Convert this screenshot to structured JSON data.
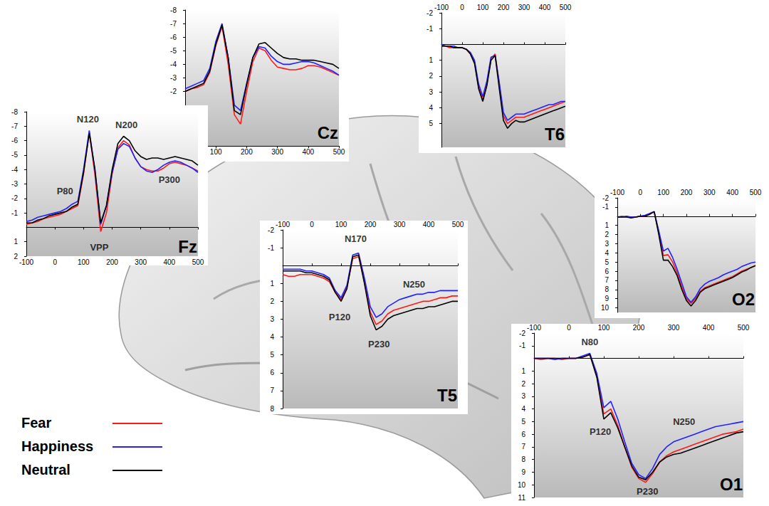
{
  "chart_data": [
    {
      "type": "line",
      "title": "Cz",
      "grid": false,
      "x": [
        0,
        20,
        40,
        60,
        80,
        100,
        120,
        140,
        160,
        180,
        200,
        220,
        240,
        260,
        280,
        300,
        320,
        340,
        360,
        380,
        400,
        420,
        440,
        460,
        480,
        500
      ],
      "xlim": [
        0,
        500
      ],
      "xticks": [
        100,
        200,
        300,
        400,
        500
      ],
      "ylim": [
        2,
        -8
      ],
      "yticks": [
        -8,
        -7,
        -6,
        -5,
        -4,
        -3,
        -2
      ],
      "series": [
        {
          "name": "Fear",
          "color": "#ff1a1a",
          "values": [
            -2.0,
            -2.2,
            -2.3,
            -2.5,
            -3.4,
            -5.4,
            -6.8,
            -4.0,
            -0.3,
            0.4,
            -2.0,
            -4.2,
            -5.2,
            -5.0,
            -4.3,
            -3.8,
            -3.7,
            -3.6,
            -3.6,
            -3.7,
            -3.9,
            -3.9,
            -3.8,
            -3.6,
            -3.4,
            -3.2
          ]
        },
        {
          "name": "Happiness",
          "color": "#2222ff",
          "values": [
            -2.2,
            -2.4,
            -2.6,
            -2.8,
            -3.7,
            -5.7,
            -7.0,
            -4.5,
            -1.0,
            -0.6,
            -2.6,
            -4.5,
            -5.3,
            -5.2,
            -4.6,
            -4.2,
            -4.0,
            -4.0,
            -4.1,
            -4.2,
            -4.2,
            -4.1,
            -3.9,
            -3.7,
            -3.5,
            -3.2
          ]
        },
        {
          "name": "Neutral",
          "color": "#000000",
          "values": [
            -2.0,
            -2.2,
            -2.4,
            -2.6,
            -3.5,
            -5.5,
            -6.9,
            -4.5,
            -0.6,
            -0.3,
            -2.5,
            -4.5,
            -5.5,
            -5.6,
            -5.2,
            -4.8,
            -4.5,
            -4.4,
            -4.4,
            -4.3,
            -4.3,
            -4.3,
            -4.2,
            -4.1,
            -4.0,
            -3.7
          ]
        }
      ],
      "annotations": []
    },
    {
      "type": "line",
      "title": "Fz",
      "grid": false,
      "legend": "lower left",
      "x": [
        -100,
        -80,
        -60,
        -40,
        -20,
        0,
        20,
        40,
        60,
        80,
        100,
        120,
        140,
        160,
        180,
        200,
        220,
        240,
        260,
        280,
        300,
        320,
        340,
        360,
        380,
        400,
        420,
        440,
        460,
        480,
        500
      ],
      "xlim": [
        -100,
        500
      ],
      "xticks": [
        -100,
        0,
        100,
        200,
        300,
        400,
        500
      ],
      "ylim": [
        2,
        -8
      ],
      "yticks": [
        -8,
        -7,
        -6,
        -5,
        -4,
        -3,
        -2,
        -1,
        1,
        2
      ],
      "series": [
        {
          "name": "Fear",
          "color": "#ff1a1a",
          "values": [
            -0.2,
            -0.3,
            -0.4,
            -0.6,
            -0.7,
            -0.8,
            -0.9,
            -1.1,
            -1.3,
            -1.5,
            -3.7,
            -6.6,
            -3.6,
            0.3,
            -1.0,
            -3.7,
            -5.5,
            -6.0,
            -5.7,
            -4.8,
            -4.2,
            -4.0,
            -3.9,
            -3.9,
            -4.1,
            -4.4,
            -4.5,
            -4.4,
            -4.3,
            -4.1,
            -3.9
          ]
        },
        {
          "name": "Happiness",
          "color": "#2222ff",
          "values": [
            -0.4,
            -0.5,
            -0.7,
            -0.8,
            -0.9,
            -1.0,
            -1.1,
            -1.3,
            -1.6,
            -1.8,
            -4.0,
            -6.7,
            -3.9,
            -0.2,
            -1.5,
            -3.8,
            -5.4,
            -5.8,
            -5.6,
            -4.8,
            -4.2,
            -3.9,
            -3.8,
            -4.0,
            -4.3,
            -4.5,
            -4.6,
            -4.5,
            -4.3,
            -4.1,
            -3.8
          ]
        },
        {
          "name": "Neutral",
          "color": "#000000",
          "values": [
            -0.3,
            -0.3,
            -0.5,
            -0.6,
            -0.8,
            -0.9,
            -1.0,
            -1.1,
            -1.4,
            -1.6,
            -3.8,
            -6.5,
            -4.0,
            -0.3,
            -1.5,
            -4.0,
            -5.8,
            -6.3,
            -6.0,
            -5.3,
            -4.9,
            -4.7,
            -4.8,
            -4.8,
            -4.7,
            -4.8,
            -4.9,
            -4.8,
            -4.7,
            -4.6,
            -4.3
          ]
        }
      ],
      "annotations": [
        {
          "text": "P80",
          "x": 35,
          "y": -2.5
        },
        {
          "text": "N120",
          "x": 115,
          "y": -7.5
        },
        {
          "text": "N200",
          "x": 250,
          "y": -7.1
        },
        {
          "text": "VPP",
          "x": 155,
          "y": 1.4
        },
        {
          "text": "P300",
          "x": 400,
          "y": -3.3
        }
      ]
    },
    {
      "type": "line",
      "title": "T6",
      "grid": false,
      "x": [
        -100,
        -80,
        -60,
        -40,
        -20,
        0,
        20,
        40,
        60,
        80,
        100,
        120,
        140,
        160,
        180,
        200,
        220,
        240,
        260,
        280,
        300,
        320,
        340,
        360,
        380,
        400,
        420,
        440,
        460,
        480,
        500
      ],
      "xlim": [
        -100,
        500
      ],
      "xticks": [
        -100,
        0,
        100,
        200,
        300,
        400,
        500
      ],
      "ylim": [
        6.5,
        -2
      ],
      "yticks": [
        -2,
        -1,
        1,
        2,
        3,
        4,
        5
      ],
      "series": [
        {
          "name": "Fear",
          "color": "#ff1a1a",
          "values": [
            0.1,
            0.1,
            0.2,
            0.2,
            0.2,
            0.2,
            0.3,
            0.6,
            1.1,
            2.7,
            3.5,
            2.5,
            0.9,
            0.6,
            2.5,
            4.5,
            5.0,
            4.8,
            4.6,
            4.6,
            4.6,
            4.5,
            4.4,
            4.3,
            4.2,
            4.1,
            4.0,
            3.9,
            3.8,
            3.7,
            3.6
          ]
        },
        {
          "name": "Happiness",
          "color": "#2222ff",
          "values": [
            0.0,
            0.1,
            0.1,
            0.1,
            0.2,
            0.2,
            0.3,
            0.5,
            1.0,
            2.5,
            3.3,
            2.3,
            0.8,
            0.7,
            2.4,
            4.3,
            4.8,
            4.6,
            4.4,
            4.4,
            4.4,
            4.3,
            4.2,
            4.1,
            4.0,
            3.9,
            3.8,
            3.8,
            3.7,
            3.6,
            3.6
          ]
        },
        {
          "name": "Neutral",
          "color": "#000000",
          "values": [
            0.1,
            0.1,
            0.1,
            0.2,
            0.2,
            0.2,
            0.3,
            0.6,
            1.2,
            2.8,
            3.6,
            2.6,
            1.0,
            0.7,
            2.8,
            4.8,
            5.3,
            5.0,
            4.8,
            4.9,
            4.9,
            4.8,
            4.7,
            4.6,
            4.5,
            4.4,
            4.3,
            4.2,
            4.1,
            4.0,
            3.9
          ]
        }
      ],
      "annotations": []
    },
    {
      "type": "line",
      "title": "O2",
      "grid": false,
      "x": [
        -100,
        -80,
        -60,
        -40,
        -20,
        0,
        20,
        40,
        60,
        80,
        100,
        120,
        140,
        160,
        180,
        200,
        220,
        240,
        260,
        280,
        300,
        320,
        340,
        360,
        380,
        400,
        420,
        440,
        460,
        480,
        500
      ],
      "xlim": [
        -100,
        500
      ],
      "xticks": [
        -100,
        0,
        100,
        200,
        300,
        400,
        500
      ],
      "ylim": [
        10.5,
        -2
      ],
      "yticks": [
        -2,
        -1,
        1,
        2,
        3,
        4,
        5,
        6,
        7,
        8,
        9,
        10
      ],
      "series": [
        {
          "name": "Fear",
          "color": "#ff1a1a",
          "values": [
            0.1,
            0.0,
            0.1,
            0.1,
            0.1,
            0.0,
            0.0,
            -0.2,
            -0.5,
            1.8,
            4.3,
            4.2,
            5.0,
            6.2,
            7.7,
            9.0,
            9.5,
            9.0,
            8.2,
            7.8,
            7.6,
            7.4,
            7.2,
            7.0,
            6.8,
            6.6,
            6.3,
            6.0,
            5.8,
            5.6,
            5.4
          ]
        },
        {
          "name": "Happiness",
          "color": "#2222ff",
          "values": [
            0.1,
            0.1,
            0.0,
            0.1,
            0.1,
            0.0,
            -0.1,
            -0.3,
            -0.5,
            1.6,
            3.8,
            3.5,
            4.5,
            5.8,
            7.3,
            8.8,
            9.4,
            8.8,
            7.9,
            7.4,
            7.1,
            6.9,
            6.7,
            6.4,
            6.2,
            6.0,
            5.8,
            5.5,
            5.3,
            5.1,
            5.0
          ]
        },
        {
          "name": "Neutral",
          "color": "#000000",
          "values": [
            0.1,
            0.1,
            0.1,
            0.2,
            0.1,
            0.0,
            0.0,
            -0.2,
            -0.5,
            2.0,
            4.8,
            4.8,
            5.5,
            6.5,
            8.0,
            9.2,
            9.8,
            9.2,
            8.3,
            7.9,
            7.7,
            7.5,
            7.3,
            7.1,
            6.9,
            6.7,
            6.4,
            6.1,
            5.9,
            5.6,
            5.4
          ]
        }
      ],
      "annotations": []
    },
    {
      "type": "line",
      "title": "T5",
      "grid": false,
      "x": [
        -100,
        -80,
        -60,
        -40,
        -20,
        0,
        20,
        40,
        60,
        80,
        100,
        120,
        140,
        160,
        180,
        200,
        220,
        240,
        260,
        280,
        300,
        320,
        340,
        360,
        380,
        400,
        420,
        440,
        460,
        480,
        500
      ],
      "xlim": [
        -100,
        500
      ],
      "xticks": [
        -100,
        0,
        100,
        200,
        300,
        400,
        500
      ],
      "ylim": [
        8,
        -2
      ],
      "yticks": [
        -2,
        -1,
        1,
        2,
        3,
        4,
        5,
        6,
        7,
        8
      ],
      "series": [
        {
          "name": "Fear",
          "color": "#ff1a1a",
          "values": [
            0.5,
            0.6,
            0.6,
            0.5,
            0.5,
            0.5,
            0.6,
            0.7,
            0.9,
            1.5,
            1.9,
            1.2,
            -0.4,
            -0.5,
            0.9,
            2.6,
            3.3,
            3.1,
            2.7,
            2.5,
            2.4,
            2.3,
            2.2,
            2.1,
            2.0,
            2.0,
            1.9,
            1.8,
            1.8,
            1.7,
            1.7
          ]
        },
        {
          "name": "Happiness",
          "color": "#2222ff",
          "values": [
            0.2,
            0.2,
            0.2,
            0.2,
            0.3,
            0.3,
            0.4,
            0.5,
            0.7,
            1.4,
            1.8,
            1.1,
            -0.6,
            -0.7,
            0.7,
            2.3,
            2.9,
            2.7,
            2.3,
            2.1,
            1.9,
            1.8,
            1.7,
            1.6,
            1.6,
            1.5,
            1.5,
            1.4,
            1.4,
            1.4,
            1.4
          ]
        },
        {
          "name": "Neutral",
          "color": "#000000",
          "values": [
            0.3,
            0.3,
            0.3,
            0.3,
            0.4,
            0.4,
            0.5,
            0.6,
            0.8,
            1.5,
            2.0,
            1.3,
            -0.5,
            -0.6,
            1.0,
            2.8,
            3.6,
            3.4,
            3.0,
            2.8,
            2.7,
            2.6,
            2.5,
            2.4,
            2.4,
            2.3,
            2.3,
            2.2,
            2.1,
            2.0,
            2.0
          ]
        }
      ],
      "annotations": [
        {
          "text": "P120",
          "x": 95,
          "y": 2.9
        },
        {
          "text": "N170",
          "x": 150,
          "y": -1.5
        },
        {
          "text": "N250",
          "x": 350,
          "y": 1.05
        },
        {
          "text": "P230",
          "x": 230,
          "y": 4.4
        }
      ]
    },
    {
      "type": "line",
      "title": "O1",
      "grid": false,
      "x": [
        -100,
        -80,
        -60,
        -40,
        -20,
        0,
        20,
        40,
        60,
        80,
        100,
        120,
        140,
        160,
        180,
        200,
        220,
        240,
        260,
        280,
        300,
        320,
        340,
        360,
        380,
        400,
        420,
        440,
        460,
        480,
        500
      ],
      "xlim": [
        -100,
        500
      ],
      "xticks": [
        -100,
        0,
        100,
        200,
        300,
        400,
        500
      ],
      "ylim": [
        11,
        -2
      ],
      "yticks": [
        -2,
        -1,
        1,
        2,
        3,
        4,
        5,
        6,
        7,
        8,
        9,
        10,
        11
      ],
      "series": [
        {
          "name": "Fear",
          "color": "#ff1a1a",
          "values": [
            0.0,
            0.1,
            0.0,
            0.0,
            0.1,
            0.0,
            0.0,
            -0.1,
            -0.3,
            1.4,
            4.4,
            4.0,
            5.3,
            7.0,
            8.6,
            9.5,
            9.8,
            9.1,
            8.2,
            7.7,
            7.4,
            7.2,
            7.0,
            6.8,
            6.6,
            6.4,
            6.2,
            6.0,
            5.9,
            5.8,
            5.6
          ]
        },
        {
          "name": "Happiness",
          "color": "#2222ff",
          "values": [
            0.0,
            0.0,
            0.0,
            0.1,
            0.0,
            0.0,
            0.0,
            -0.2,
            -0.4,
            1.2,
            3.9,
            3.4,
            4.8,
            6.6,
            8.3,
            9.2,
            9.5,
            8.7,
            7.6,
            7.0,
            6.6,
            6.4,
            6.2,
            6.0,
            5.8,
            5.6,
            5.4,
            5.3,
            5.2,
            5.1,
            5.0
          ]
        },
        {
          "name": "Neutral",
          "color": "#000000",
          "values": [
            0.0,
            0.0,
            0.0,
            0.0,
            0.0,
            0.0,
            0.0,
            -0.1,
            -0.3,
            1.5,
            4.8,
            4.3,
            5.5,
            7.0,
            8.5,
            9.4,
            9.6,
            9.0,
            8.2,
            7.8,
            7.6,
            7.5,
            7.3,
            7.1,
            6.9,
            6.7,
            6.5,
            6.3,
            6.1,
            5.9,
            5.8
          ]
        }
      ],
      "annotations": [
        {
          "text": "N80",
          "x": 60,
          "y": -1.3
        },
        {
          "text": "P120",
          "x": 90,
          "y": 5.8
        },
        {
          "text": "N250",
          "x": 330,
          "y": 5.0
        },
        {
          "text": "P230",
          "x": 225,
          "y": 10.5
        }
      ]
    }
  ]
}
